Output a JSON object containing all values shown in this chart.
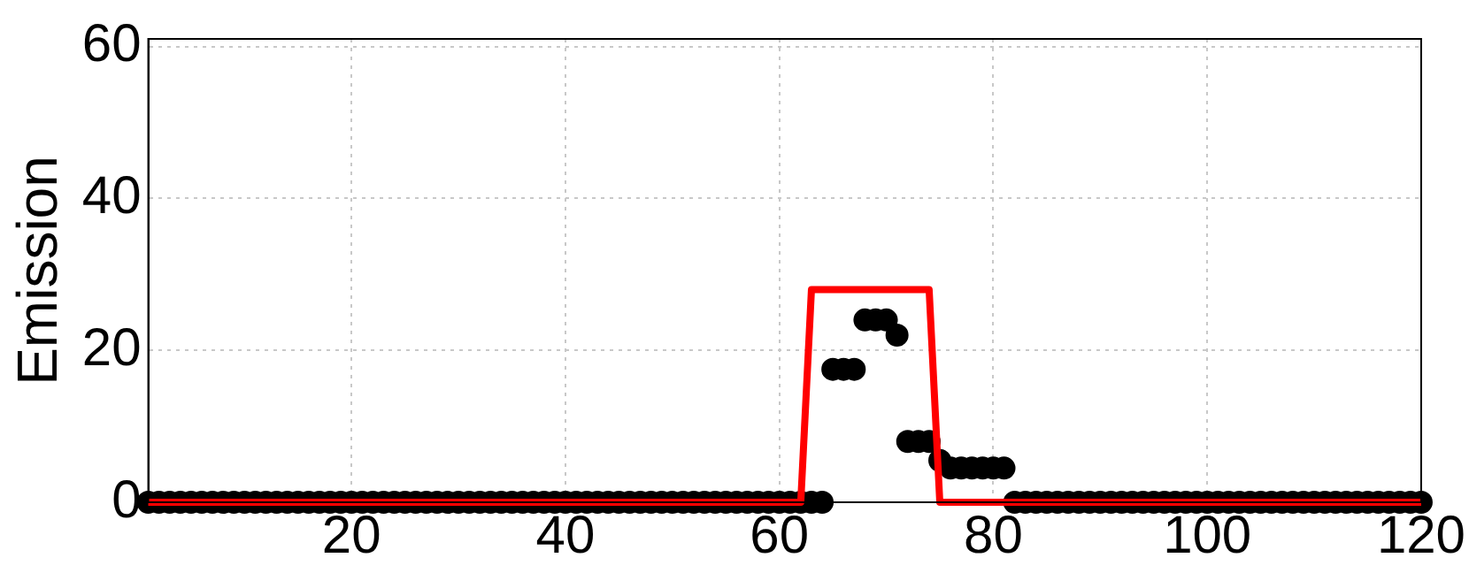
{
  "chart_data": {
    "type": "scatter",
    "ylabel": "Emission",
    "x": [
      1,
      2,
      3,
      4,
      5,
      6,
      7,
      8,
      9,
      10,
      11,
      12,
      13,
      14,
      15,
      16,
      17,
      18,
      19,
      20,
      21,
      22,
      23,
      24,
      25,
      26,
      27,
      28,
      29,
      30,
      31,
      32,
      33,
      34,
      35,
      36,
      37,
      38,
      39,
      40,
      41,
      42,
      43,
      44,
      45,
      46,
      47,
      48,
      49,
      50,
      51,
      52,
      53,
      54,
      55,
      56,
      57,
      58,
      59,
      60,
      61,
      62,
      63,
      64,
      65,
      66,
      67,
      68,
      69,
      70,
      71,
      72,
      73,
      74,
      75,
      76,
      77,
      78,
      79,
      80,
      81,
      82,
      83,
      84,
      85,
      86,
      87,
      88,
      89,
      90,
      91,
      92,
      93,
      94,
      95,
      96,
      97,
      98,
      99,
      100,
      101,
      102,
      103,
      104,
      105,
      106,
      107,
      108,
      109,
      110,
      111,
      112,
      113,
      114,
      115,
      116,
      117,
      118,
      119,
      120
    ],
    "series": [
      {
        "color": "#000000",
        "marker": "circle",
        "values": [
          0,
          0,
          0,
          0,
          0,
          0,
          0,
          0,
          0,
          0,
          0,
          0,
          0,
          0,
          0,
          0,
          0,
          0,
          0,
          0,
          0,
          0,
          0,
          0,
          0,
          0,
          0,
          0,
          0,
          0,
          0,
          0,
          0,
          0,
          0,
          0,
          0,
          0,
          0,
          0,
          0,
          0,
          0,
          0,
          0,
          0,
          0,
          0,
          0,
          0,
          0,
          0,
          0,
          0,
          0,
          0,
          0,
          0,
          0,
          0,
          0,
          0,
          0,
          0,
          17.5,
          17.5,
          17.5,
          24,
          24,
          24,
          22,
          8,
          8,
          8,
          5.5,
          4.5,
          4.5,
          4.5,
          4.5,
          4.5,
          4.5,
          0,
          0,
          0,
          0,
          0,
          0,
          0,
          0,
          0,
          0,
          0,
          0,
          0,
          0,
          0,
          0,
          0,
          0,
          0,
          0,
          0,
          0,
          0,
          0,
          0,
          0,
          0,
          0,
          0,
          0,
          0,
          0,
          0,
          0,
          0,
          0,
          0,
          0,
          0
        ]
      },
      {
        "type": "line",
        "color": "#ff0000",
        "marker": "none",
        "line_style": "solid",
        "values": [
          0,
          0,
          0,
          0,
          0,
          0,
          0,
          0,
          0,
          0,
          0,
          0,
          0,
          0,
          0,
          0,
          0,
          0,
          0,
          0,
          0,
          0,
          0,
          0,
          0,
          0,
          0,
          0,
          0,
          0,
          0,
          0,
          0,
          0,
          0,
          0,
          0,
          0,
          0,
          0,
          0,
          0,
          0,
          0,
          0,
          0,
          0,
          0,
          0,
          0,
          0,
          0,
          0,
          0,
          0,
          0,
          0,
          0,
          0,
          0,
          0,
          0,
          28,
          28,
          28,
          28,
          28,
          28,
          28,
          28,
          28,
          28,
          28,
          28,
          0,
          0,
          0,
          0,
          0,
          0,
          0,
          0,
          0,
          0,
          0,
          0,
          0,
          0,
          0,
          0,
          0,
          0,
          0,
          0,
          0,
          0,
          0,
          0,
          0,
          0,
          0,
          0,
          0,
          0,
          0,
          0,
          0,
          0,
          0,
          0,
          0,
          0,
          0,
          0,
          0,
          0,
          0,
          0,
          0,
          0
        ]
      }
    ],
    "xlim": [
      1,
      120
    ],
    "xticks": [
      20,
      40,
      60,
      80,
      100,
      120
    ],
    "ylim": [
      0,
      61
    ],
    "yticks": [
      0,
      20,
      40,
      60
    ],
    "grid": true,
    "legend": false
  }
}
